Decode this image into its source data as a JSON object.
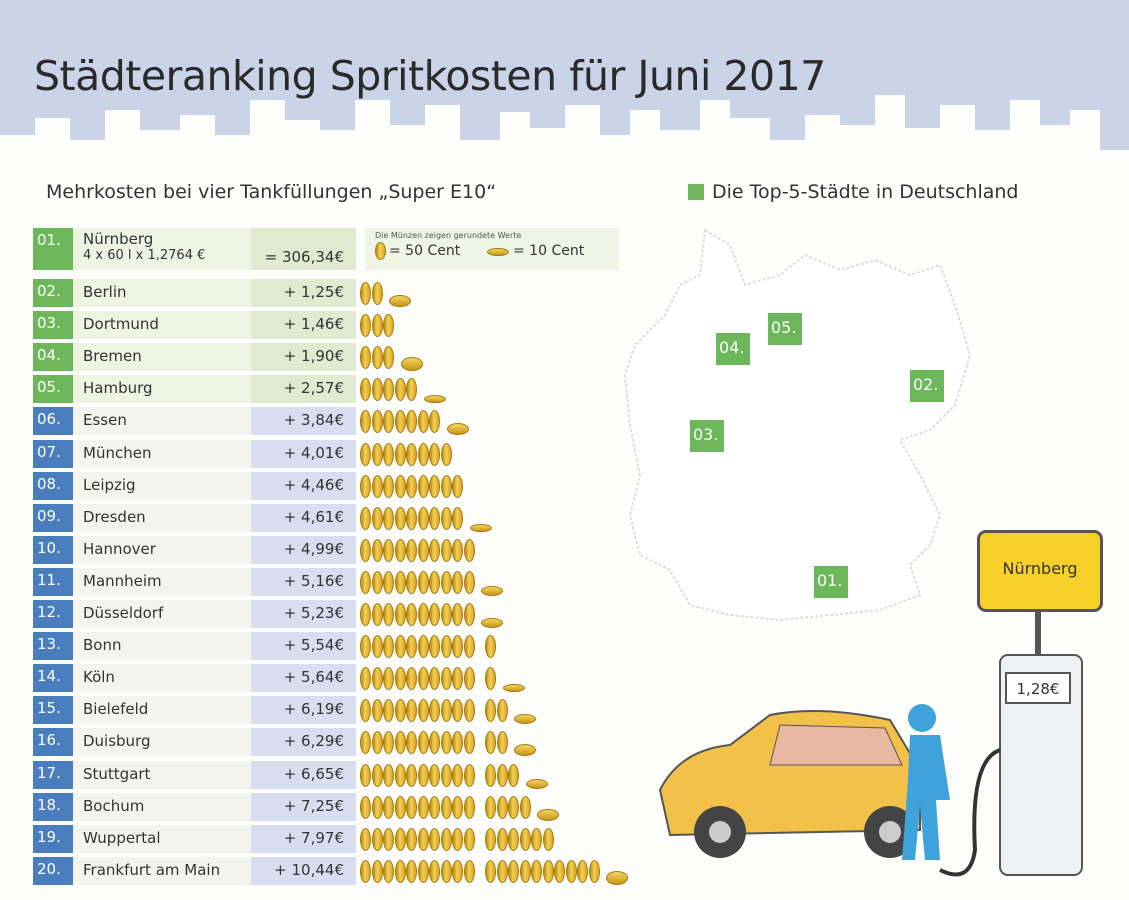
{
  "title": "Städteranking Spritkosten für Juni 2017",
  "subtitle": "Mehrkosten bei vier Tankfüllungen „Super E10“",
  "map_title": "Die Top-5-Städte in Deutschland",
  "legend": {
    "note": "Die Münzen zeigen gerundete Werte",
    "coin50": "= 50 Cent",
    "coin10": "= 10 Cent"
  },
  "first": {
    "rank": "01.",
    "name": "Nürnberg",
    "formula": "4 x 60 l x 1,2764 €",
    "value": "= 306,34€"
  },
  "sign": "Nürnberg",
  "pump_price": "1,28€",
  "colors": {
    "top5": "#6cb75a",
    "others": "#4a7dbd",
    "coin": "#f2cf55",
    "sky": "#c9d4e9"
  },
  "map_labels": [
    "01.",
    "02.",
    "03.",
    "04.",
    "05."
  ],
  "chart_data": {
    "type": "bar",
    "title": "Städteranking Spritkosten für Juni 2017",
    "unit": "€ Mehrkosten",
    "rows": [
      {
        "rank": "02.",
        "city": "Berlin",
        "label": "+ 1,25€",
        "value": 1.25
      },
      {
        "rank": "03.",
        "city": "Dortmund",
        "label": "+ 1,46€",
        "value": 1.46
      },
      {
        "rank": "04.",
        "city": "Bremen",
        "label": "+ 1,90€",
        "value": 1.9
      },
      {
        "rank": "05.",
        "city": "Hamburg",
        "label": "+ 2,57€",
        "value": 2.57
      },
      {
        "rank": "06.",
        "city": "Essen",
        "label": "+ 3,84€",
        "value": 3.84
      },
      {
        "rank": "07.",
        "city": "München",
        "label": "+ 4,01€",
        "value": 4.01
      },
      {
        "rank": "08.",
        "city": "Leipzig",
        "label": "+ 4,46€",
        "value": 4.46
      },
      {
        "rank": "09.",
        "city": "Dresden",
        "label": "+ 4,61€",
        "value": 4.61
      },
      {
        "rank": "10.",
        "city": "Hannover",
        "label": "+ 4,99€",
        "value": 4.99
      },
      {
        "rank": "11.",
        "city": "Mannheim",
        "label": "+ 5,16€",
        "value": 5.16
      },
      {
        "rank": "12.",
        "city": "Düsseldorf",
        "label": "+ 5,23€",
        "value": 5.23
      },
      {
        "rank": "13.",
        "city": "Bonn",
        "label": "+ 5,54€",
        "value": 5.54
      },
      {
        "rank": "14.",
        "city": "Köln",
        "label": "+ 5,64€",
        "value": 5.64
      },
      {
        "rank": "15.",
        "city": "Bielefeld",
        "label": "+ 6,19€",
        "value": 6.19
      },
      {
        "rank": "16.",
        "city": "Duisburg",
        "label": "+ 6,29€",
        "value": 6.29
      },
      {
        "rank": "17.",
        "city": "Stuttgart",
        "label": "+ 6,65€",
        "value": 6.65
      },
      {
        "rank": "18.",
        "city": "Bochum",
        "label": "+ 7,25€",
        "value": 7.25
      },
      {
        "rank": "19.",
        "city": "Wuppertal",
        "label": "+ 7,97€",
        "value": 7.97
      },
      {
        "rank": "20.",
        "city": "Frankfurt am Main",
        "label": "+ 10,44€",
        "value": 10.44
      }
    ]
  }
}
